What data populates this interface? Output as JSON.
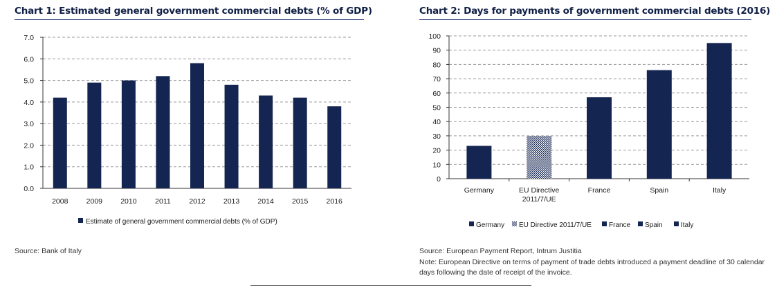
{
  "chart1": {
    "title": "Chart 1: Estimated general government commercial debts (% of GDP)",
    "source": "Source:  Bank of Italy",
    "chart_data": {
      "type": "bar",
      "categories": [
        "2008",
        "2009",
        "2010",
        "2011",
        "2012",
        "2013",
        "2014",
        "2015",
        "2016"
      ],
      "series": [
        {
          "name": "Estimate of general government commercial debts (% of GDP)",
          "values": [
            4.2,
            4.9,
            5.0,
            5.2,
            5.8,
            4.8,
            4.3,
            4.2,
            3.8
          ]
        }
      ],
      "yticks": [
        "0.0",
        "1.0",
        "2.0",
        "3.0",
        "4.0",
        "5.0",
        "6.0",
        "7.0"
      ],
      "ylim": [
        0,
        7
      ],
      "grid": true,
      "legend_position": "bottom",
      "bar_color": "#152551"
    }
  },
  "chart2": {
    "title": "Chart 2: Days for payments of government commercial debts (2016)",
    "source": "Source:  European Payment Report, Intrum Justitia",
    "note": "Note: European Directive on terms of payment of trade debts introduced  a payment deadline of 30 calendar days following the date of receipt of the invoice.",
    "chart_data": {
      "type": "bar",
      "categories": [
        "Germany",
        "EU Directive 2011/7/UE",
        "France",
        "Spain",
        "Italy"
      ],
      "category_lines": [
        [
          "Germany"
        ],
        [
          "EU Directive",
          "2011/7/UE"
        ],
        [
          "France"
        ],
        [
          "Spain"
        ],
        [
          "Italy"
        ]
      ],
      "values": [
        23,
        30,
        57,
        76,
        95
      ],
      "patterns": [
        "solid",
        "checker",
        "solid",
        "solid",
        "solid"
      ],
      "legend": [
        "Germany",
        "EU Directive 2011/7/UE",
        "France",
        "Spain",
        "Italy"
      ],
      "yticks": [
        "0",
        "10",
        "20",
        "30",
        "40",
        "50",
        "60",
        "70",
        "80",
        "90",
        "100"
      ],
      "ylim": [
        0,
        100
      ],
      "grid": true,
      "legend_position": "bottom",
      "bar_color": "#152551"
    }
  }
}
